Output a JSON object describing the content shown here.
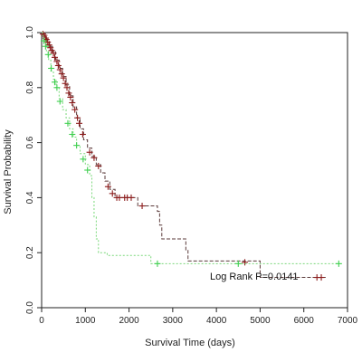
{
  "chart_data": {
    "type": "line",
    "subtype": "kaplan-meier",
    "xlabel": "Survival Time (days)",
    "ylabel": "Survival Probability",
    "xlim": [
      0,
      7000
    ],
    "ylim": [
      0,
      1.0
    ],
    "x_ticks": [
      0,
      1000,
      2000,
      3000,
      4000,
      5000,
      6000,
      7000
    ],
    "y_ticks": [
      0.0,
      0.2,
      0.4,
      0.6,
      0.8,
      1.0
    ],
    "x_tick_labels": [
      "0",
      "1000",
      "2000",
      "3000",
      "4000",
      "5000",
      "6000",
      "7000"
    ],
    "y_tick_labels": [
      "0.0",
      "0.2",
      "0.4",
      "0.6",
      "0.8",
      "1.0"
    ],
    "grid": false,
    "annotation": "Log Rank P=0.0141",
    "colors": {
      "dark_series": "#5a3a3a",
      "dark_censor": "#8b1a1a",
      "light_series": "#7ad87a",
      "light_censor": "#3fcf4f",
      "axis": "#222222"
    },
    "series": [
      {
        "steps": [
          [
            0,
            1.0
          ],
          [
            40,
            0.99
          ],
          [
            80,
            0.98
          ],
          [
            120,
            0.97
          ],
          [
            180,
            0.95
          ],
          [
            250,
            0.93
          ],
          [
            320,
            0.9
          ],
          [
            400,
            0.87
          ],
          [
            480,
            0.84
          ],
          [
            560,
            0.81
          ],
          [
            640,
            0.77
          ],
          [
            720,
            0.73
          ],
          [
            800,
            0.69
          ],
          [
            880,
            0.65
          ],
          [
            960,
            0.61
          ],
          [
            1050,
            0.58
          ],
          [
            1150,
            0.55
          ],
          [
            1250,
            0.52
          ],
          [
            1350,
            0.49
          ],
          [
            1450,
            0.46
          ],
          [
            1560,
            0.43
          ],
          [
            1680,
            0.4
          ],
          [
            2200,
            0.37
          ],
          [
            2650,
            0.35
          ],
          [
            2700,
            0.3
          ],
          [
            2750,
            0.25
          ],
          [
            3300,
            0.21
          ],
          [
            3350,
            0.17
          ],
          [
            5000,
            0.11
          ],
          [
            6500,
            0.11
          ]
        ],
        "censored": [
          [
            30,
            0.995
          ],
          [
            60,
            0.99
          ],
          [
            90,
            0.98
          ],
          [
            110,
            0.975
          ],
          [
            140,
            0.965
          ],
          [
            170,
            0.955
          ],
          [
            200,
            0.945
          ],
          [
            230,
            0.935
          ],
          [
            270,
            0.925
          ],
          [
            300,
            0.91
          ],
          [
            350,
            0.895
          ],
          [
            380,
            0.88
          ],
          [
            420,
            0.865
          ],
          [
            460,
            0.85
          ],
          [
            500,
            0.835
          ],
          [
            540,
            0.815
          ],
          [
            580,
            0.8
          ],
          [
            620,
            0.78
          ],
          [
            660,
            0.765
          ],
          [
            700,
            0.745
          ],
          [
            760,
            0.72
          ],
          [
            820,
            0.69
          ],
          [
            860,
            0.67
          ],
          [
            940,
            0.63
          ],
          [
            1100,
            0.565
          ],
          [
            1200,
            0.545
          ],
          [
            1300,
            0.515
          ],
          [
            1520,
            0.44
          ],
          [
            1620,
            0.415
          ],
          [
            1720,
            0.4
          ],
          [
            1780,
            0.4
          ],
          [
            1900,
            0.4
          ],
          [
            1960,
            0.4
          ],
          [
            2050,
            0.4
          ],
          [
            2300,
            0.37
          ],
          [
            4650,
            0.165
          ],
          [
            6300,
            0.11
          ],
          [
            6400,
            0.11
          ]
        ]
      },
      {
        "steps": [
          [
            0,
            1.0
          ],
          [
            30,
            0.98
          ],
          [
            70,
            0.96
          ],
          [
            110,
            0.93
          ],
          [
            160,
            0.9
          ],
          [
            210,
            0.86
          ],
          [
            270,
            0.83
          ],
          [
            330,
            0.8
          ],
          [
            400,
            0.76
          ],
          [
            480,
            0.72
          ],
          [
            560,
            0.69
          ],
          [
            640,
            0.65
          ],
          [
            720,
            0.62
          ],
          [
            800,
            0.59
          ],
          [
            880,
            0.56
          ],
          [
            1000,
            0.52
          ],
          [
            1100,
            0.48
          ],
          [
            1150,
            0.4
          ],
          [
            1200,
            0.33
          ],
          [
            1250,
            0.25
          ],
          [
            1300,
            0.2
          ],
          [
            1500,
            0.19
          ],
          [
            2500,
            0.16
          ],
          [
            6800,
            0.16
          ]
        ],
        "censored": [
          [
            50,
            0.97
          ],
          [
            90,
            0.95
          ],
          [
            150,
            0.92
          ],
          [
            220,
            0.87
          ],
          [
            300,
            0.82
          ],
          [
            350,
            0.8
          ],
          [
            420,
            0.75
          ],
          [
            600,
            0.67
          ],
          [
            700,
            0.63
          ],
          [
            800,
            0.59
          ],
          [
            950,
            0.54
          ],
          [
            1050,
            0.5
          ],
          [
            2650,
            0.16
          ],
          [
            4500,
            0.16
          ],
          [
            6800,
            0.16
          ]
        ]
      }
    ]
  }
}
